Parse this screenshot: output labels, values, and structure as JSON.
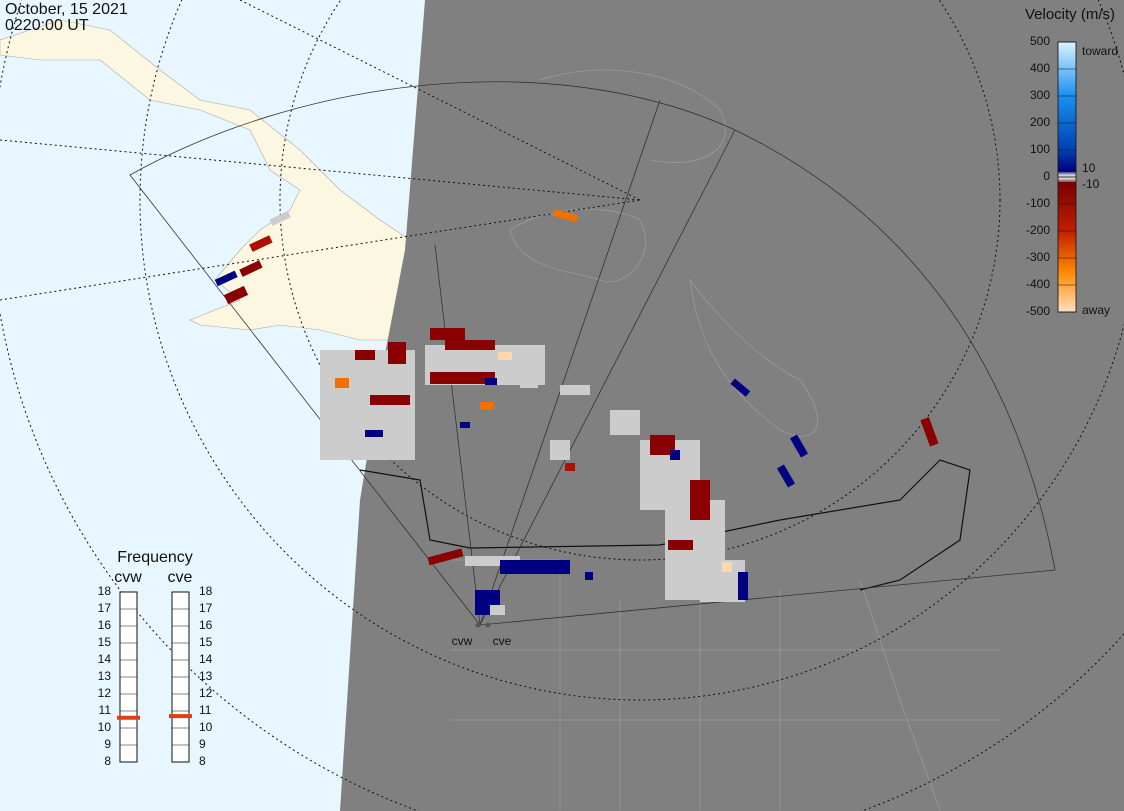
{
  "header": {
    "date": "October, 15 2021",
    "time": "0220:00 UT"
  },
  "colorbar": {
    "title": "Velocity (m/s)",
    "ticks": [
      500,
      400,
      300,
      200,
      100,
      0,
      -100,
      -200,
      -300,
      -400,
      -500
    ],
    "inner_ticks": [
      {
        "value": 10,
        "label": "10"
      },
      {
        "value": -10,
        "label": "-10"
      }
    ],
    "top_label": "toward",
    "bottom_label": "away"
  },
  "frequency": {
    "title": "Frequency",
    "ticks": [
      18,
      17,
      16,
      15,
      14,
      13,
      12,
      11,
      10,
      9,
      8
    ],
    "radars": [
      {
        "name": "cvw",
        "value": 10.6
      },
      {
        "name": "cve",
        "value": 10.7
      }
    ]
  },
  "sites": [
    "cvw",
    "cve"
  ]
}
